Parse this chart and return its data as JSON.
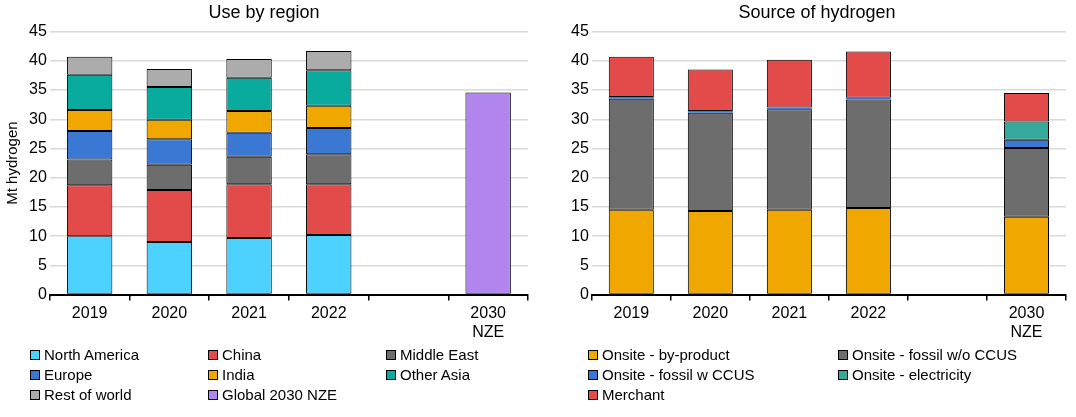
{
  "chart_data": [
    {
      "type": "bar",
      "title": "Use by region",
      "ylabel": "Mt hydrogen",
      "stacked": true,
      "grid": "y",
      "legend": "bottom",
      "categories": [
        "2019",
        "2020",
        "2021",
        "2022",
        null,
        "2030 NZE"
      ],
      "ylim": [
        0,
        45
      ],
      "yticks": [
        0,
        5,
        10,
        15,
        20,
        25,
        30,
        35,
        40,
        45
      ],
      "series": [
        {
          "name": "North America",
          "color": "#4dd2ff",
          "values": [
            10.0,
            9.0,
            9.7,
            10.2,
            null,
            null
          ]
        },
        {
          "name": "China",
          "color": "#e34a4a",
          "values": [
            8.7,
            8.9,
            9.2,
            8.7,
            null,
            null
          ]
        },
        {
          "name": "Middle East",
          "color": "#6d6d6d",
          "values": [
            4.4,
            4.3,
            4.7,
            5.1,
            null,
            null
          ]
        },
        {
          "name": "Europe",
          "color": "#3a78d4",
          "values": [
            4.9,
            4.4,
            4.1,
            4.5,
            null,
            null
          ]
        },
        {
          "name": "India",
          "color": "#f0a800",
          "values": [
            3.6,
            3.3,
            3.7,
            3.8,
            null,
            null
          ]
        },
        {
          "name": "Other Asia",
          "color": "#0aab9f",
          "values": [
            6.0,
            5.6,
            5.7,
            6.1,
            null,
            null
          ]
        },
        {
          "name": "Rest of world",
          "color": "#acacac",
          "values": [
            3.1,
            3.1,
            3.2,
            3.3,
            null,
            null
          ]
        },
        {
          "name": "Global 2030 NZE",
          "color": "#b086ee",
          "values": [
            null,
            null,
            null,
            null,
            null,
            34.6
          ]
        }
      ]
    },
    {
      "type": "bar",
      "title": "Source of hydrogen",
      "stacked": true,
      "grid": "y",
      "legend": "bottom",
      "categories": [
        "2019",
        "2020",
        "2021",
        "2022",
        null,
        "2030 NZE"
      ],
      "ylim": [
        0,
        45
      ],
      "yticks": [
        0,
        5,
        10,
        15,
        20,
        25,
        30,
        35,
        40,
        45
      ],
      "series": [
        {
          "name": "Onsite - by-product",
          "color": "#f0a800",
          "values": [
            14.5,
            14.3,
            14.5,
            14.8,
            null,
            13.3
          ]
        },
        {
          "name": "Onsite - fossil w/o CCUS",
          "color": "#6d6d6d",
          "values": [
            19.0,
            16.8,
            17.2,
            18.6,
            null,
            11.8
          ]
        },
        {
          "name": "Onsite - fossil w CCUS",
          "color": "#3a78d4",
          "values": [
            0.3,
            0.3,
            0.3,
            0.3,
            null,
            1.4
          ]
        },
        {
          "name": "Onsite - electricity",
          "color": "#35a99c",
          "values": [
            null,
            null,
            null,
            null,
            null,
            3.1
          ]
        },
        {
          "name": "Merchant",
          "color": "#e34a4a",
          "values": [
            6.9,
            7.1,
            8.2,
            7.9,
            null,
            4.9
          ]
        }
      ]
    }
  ]
}
